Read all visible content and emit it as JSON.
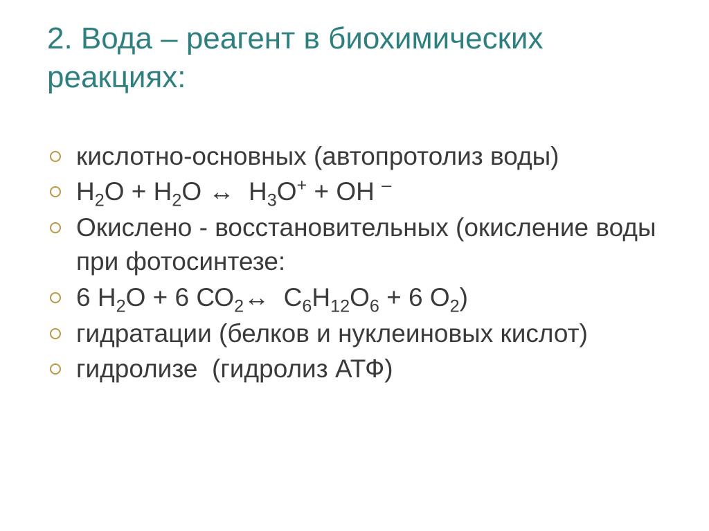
{
  "title": "2. Вода – реагент в биохимических реакциях:",
  "title_color": "#2f7f7f",
  "bullet_border_color": "#b89848",
  "text_color": "#3b3b3b",
  "background_color": "#ffffff",
  "items": [
    {
      "html": "кислотно-основных (автопротолиз воды)"
    },
    {
      "html": "Н<sub>2</sub>О + Н<sub>2</sub>О <span class='arrow'>↔</span>&nbsp;&nbsp;Н<sub>3</sub>О<sup>+</sup> + ОН <sup>–</sup>"
    },
    {
      "html": "Окислено - восстановительных (окисление воды при фотосинтезе:"
    },
    {
      "html": "6 Н<sub>2</sub>О + 6 СО<sub>2</sub><span class='arrow'>↔</span>&nbsp;&nbsp;С<sub>6</sub>Н<sub>12</sub>О<sub>6</sub> + 6 О<sub>2</sub>)"
    },
    {
      "html": "гидратации (белков и нуклеиновых кислот)"
    },
    {
      "html": "гидролизе&nbsp;&nbsp;(гидролиз АТФ)"
    }
  ]
}
